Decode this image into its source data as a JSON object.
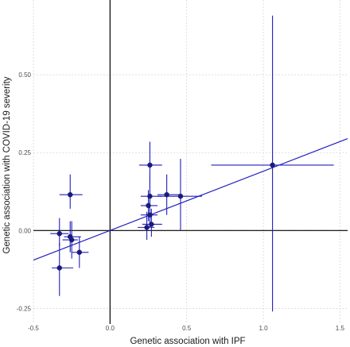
{
  "chart_data": {
    "type": "scatter",
    "xlabel": "Genetic association with IPF",
    "ylabel": "Genetic association with COVID-19 severity",
    "xlim": [
      -0.5,
      1.55
    ],
    "ylim": [
      -0.3,
      0.74
    ],
    "x_ticks": [
      -0.5,
      0.0,
      0.5,
      1.0,
      1.5
    ],
    "x_tick_labels": [
      "-0.5",
      "0.0",
      "0.5",
      "1.0",
      "1.5"
    ],
    "y_ticks": [
      -0.25,
      0.0,
      0.25,
      0.5
    ],
    "y_tick_labels": [
      "-0.25",
      "0.00",
      "0.25",
      "0.50"
    ],
    "grid": true,
    "zero_lines": true,
    "color": "#1f1fbf",
    "point_color": "#1a1a7a",
    "points": [
      {
        "x": -0.33,
        "y": -0.12,
        "xlo": -0.38,
        "xhi": -0.24,
        "ylo": -0.21,
        "yhi": -0.04
      },
      {
        "x": -0.33,
        "y": -0.01,
        "xlo": -0.39,
        "xhi": -0.27,
        "ylo": -0.05,
        "yhi": 0.04
      },
      {
        "x": -0.26,
        "y": 0.115,
        "xlo": -0.33,
        "xhi": -0.18,
        "ylo": 0.07,
        "yhi": 0.18
      },
      {
        "x": -0.25,
        "y": -0.03,
        "xlo": -0.31,
        "xhi": -0.21,
        "ylo": -0.09,
        "yhi": 0.03
      },
      {
        "x": -0.26,
        "y": -0.02,
        "xlo": -0.3,
        "xhi": -0.19,
        "ylo": -0.07,
        "yhi": 0.03
      },
      {
        "x": -0.2,
        "y": -0.07,
        "xlo": -0.25,
        "xhi": -0.14,
        "ylo": -0.12,
        "yhi": -0.02
      },
      {
        "x": 0.26,
        "y": 0.21,
        "xlo": 0.19,
        "xhi": 0.34,
        "ylo": 0.14,
        "yhi": 0.285
      },
      {
        "x": 0.26,
        "y": 0.11,
        "xlo": 0.2,
        "xhi": 0.34,
        "ylo": 0.06,
        "yhi": 0.18
      },
      {
        "x": 0.25,
        "y": 0.08,
        "xlo": 0.2,
        "xhi": 0.31,
        "ylo": 0.03,
        "yhi": 0.13
      },
      {
        "x": 0.26,
        "y": 0.05,
        "xlo": 0.2,
        "xhi": 0.31,
        "ylo": 0.01,
        "yhi": 0.1
      },
      {
        "x": 0.27,
        "y": 0.02,
        "xlo": 0.21,
        "xhi": 0.34,
        "ylo": -0.02,
        "yhi": 0.07
      },
      {
        "x": 0.24,
        "y": 0.01,
        "xlo": 0.18,
        "xhi": 0.29,
        "ylo": -0.03,
        "yhi": 0.06
      },
      {
        "x": 0.37,
        "y": 0.115,
        "xlo": 0.31,
        "xhi": 0.45,
        "ylo": 0.05,
        "yhi": 0.18
      },
      {
        "x": 0.46,
        "y": 0.11,
        "xlo": 0.31,
        "xhi": 0.6,
        "ylo": 0.0,
        "yhi": 0.23
      },
      {
        "x": 1.06,
        "y": 0.21,
        "xlo": 0.66,
        "xhi": 1.46,
        "ylo": -0.26,
        "yhi": 0.69
      }
    ],
    "fit_line": {
      "x": [
        -0.5,
        1.55
      ],
      "y": [
        -0.095,
        0.295
      ]
    }
  }
}
